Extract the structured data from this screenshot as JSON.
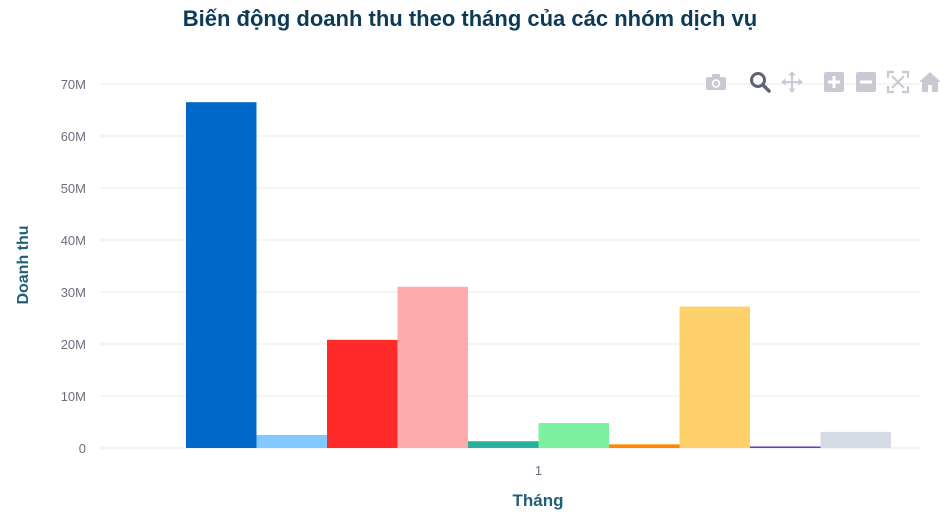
{
  "chart_data": {
    "type": "bar",
    "title": "Biến động doanh thu theo tháng của các nhóm dịch vụ",
    "xlabel": "Tháng",
    "ylabel": "Doanh thu",
    "categories": [
      "1"
    ],
    "ylim": [
      0,
      70000000
    ],
    "yticks": [
      0,
      10000000,
      20000000,
      30000000,
      40000000,
      50000000,
      60000000,
      70000000
    ],
    "ytick_labels": [
      "0",
      "10M",
      "20M",
      "30M",
      "40M",
      "50M",
      "60M",
      "70M"
    ],
    "grid": true,
    "series": [
      {
        "values": [
          66500000
        ],
        "color": "#0068c9"
      },
      {
        "values": [
          2500000
        ],
        "color": "#83c9ff"
      },
      {
        "values": [
          20800000
        ],
        "color": "#ff2b2b"
      },
      {
        "values": [
          31000000
        ],
        "color": "#ffabab"
      },
      {
        "values": [
          1300000
        ],
        "color": "#29b09d"
      },
      {
        "values": [
          4800000
        ],
        "color": "#7defa1"
      },
      {
        "values": [
          700000
        ],
        "color": "#ff8700"
      },
      {
        "values": [
          27200000
        ],
        "color": "#ffd16a"
      },
      {
        "values": [
          300000
        ],
        "color": "#6d3fc0"
      },
      {
        "values": [
          3100000
        ],
        "color": "#d5dae5"
      }
    ]
  },
  "toolbar": {
    "icons": [
      "camera-icon",
      "zoom-icon",
      "pan-icon",
      "zoom-in-icon",
      "zoom-out-icon",
      "autoscale-icon",
      "home-icon"
    ]
  }
}
